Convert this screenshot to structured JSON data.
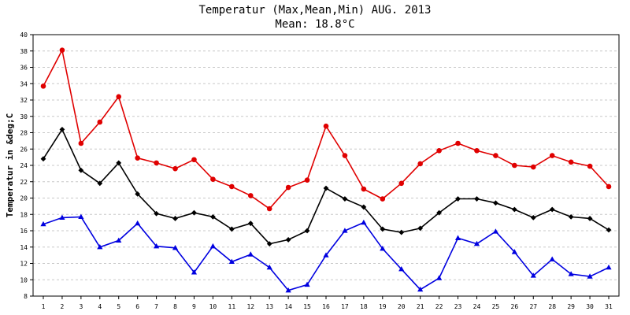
{
  "chart_data": {
    "type": "line",
    "title": "Temperatur (Max,Mean,Min) AUG. 2013",
    "subtitle": "Mean: 18.8°C",
    "xlabel": "",
    "ylabel": "Temperatur in &deg;C",
    "ylim": [
      8,
      40
    ],
    "yticks": [
      8,
      10,
      12,
      14,
      16,
      18,
      20,
      22,
      24,
      26,
      28,
      30,
      32,
      34,
      36,
      38,
      40
    ],
    "categories": [
      "1",
      "2",
      "3",
      "4",
      "5",
      "6",
      "7",
      "8",
      "9",
      "10",
      "11",
      "12",
      "13",
      "14",
      "15",
      "16",
      "17",
      "18",
      "19",
      "20",
      "21",
      "22",
      "23",
      "24",
      "25",
      "26",
      "27",
      "28",
      "29",
      "30",
      "31"
    ],
    "grid": true,
    "series": [
      {
        "color": "#e00000",
        "marker": "circle",
        "values": [
          33.7,
          38.1,
          26.7,
          29.3,
          32.4,
          24.9,
          24.3,
          23.6,
          24.7,
          22.3,
          21.4,
          20.3,
          18.7,
          21.3,
          22.2,
          28.8,
          25.2,
          21.1,
          19.9,
          21.8,
          24.2,
          25.8,
          26.7,
          25.8,
          25.2,
          24.0,
          23.8,
          25.2,
          24.4,
          23.9,
          21.4
        ]
      },
      {
        "color": "#000000",
        "marker": "diamond",
        "values": [
          24.8,
          28.4,
          23.4,
          21.8,
          24.3,
          20.5,
          18.1,
          17.5,
          18.2,
          17.7,
          16.2,
          16.9,
          14.4,
          14.9,
          16.0,
          21.2,
          19.9,
          18.9,
          16.2,
          15.8,
          16.3,
          18.2,
          19.9,
          19.9,
          19.4,
          18.6,
          17.6,
          18.6,
          17.7,
          17.5,
          16.1
        ]
      },
      {
        "color": "#0000e0",
        "marker": "triangle",
        "values": [
          16.8,
          17.6,
          17.7,
          14.0,
          14.8,
          16.9,
          14.1,
          13.9,
          10.9,
          14.1,
          12.2,
          13.1,
          11.5,
          8.7,
          9.4,
          13.0,
          16.0,
          17.0,
          13.8,
          11.3,
          8.8,
          10.2,
          15.1,
          14.4,
          15.9,
          13.4,
          10.5,
          12.5,
          10.7,
          10.4,
          11.5
        ]
      }
    ]
  }
}
